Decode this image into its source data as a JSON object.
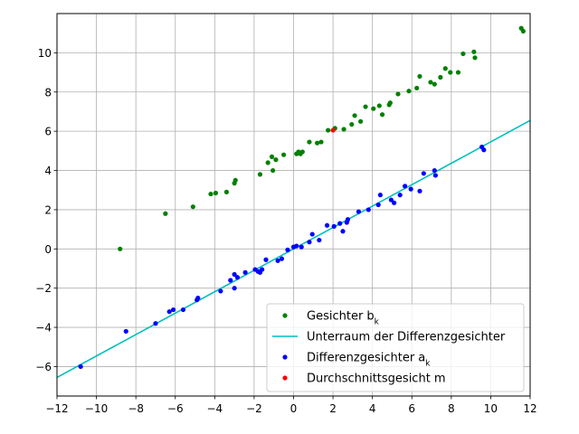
{
  "chart_data": {
    "type": "scatter",
    "title": "",
    "xlabel": "",
    "ylabel": "",
    "xlim": [
      -12,
      12
    ],
    "ylim": [
      -7.5,
      12
    ],
    "xticks": [
      -12,
      -10,
      -8,
      -6,
      -4,
      -2,
      0,
      2,
      4,
      6,
      8,
      10,
      12
    ],
    "yticks": [
      -6,
      -4,
      -2,
      0,
      2,
      4,
      6,
      8,
      10
    ],
    "xtick_labels": [
      "−12",
      "−10",
      "−8",
      "−6",
      "−4",
      "−2",
      "0",
      "2",
      "4",
      "6",
      "8",
      "10",
      "12"
    ],
    "ytick_labels": [
      "−6",
      "−4",
      "−2",
      "0",
      "2",
      "4",
      "6",
      "8",
      "10"
    ],
    "grid": true,
    "legend_position": "bottom-right",
    "legend": [
      {
        "label": "Gesichter b",
        "sub": "k",
        "kind": "point",
        "color": "#008000"
      },
      {
        "label": "Unterraum der Differenzgesichter",
        "sub": "",
        "kind": "line",
        "color": "#00bfbf"
      },
      {
        "label": "Differenzgesichter a",
        "sub": "k",
        "kind": "point",
        "color": "#0000ff"
      },
      {
        "label": "Durchschnittsgesicht m",
        "sub": "",
        "kind": "point",
        "color": "#ff0000"
      }
    ],
    "series": [
      {
        "name": "Gesichter b_k",
        "color": "#008000",
        "points": [
          [
            -8.8,
            0.0
          ],
          [
            -6.5,
            1.8
          ],
          [
            -5.1,
            2.15
          ],
          [
            -4.2,
            2.8
          ],
          [
            -3.95,
            2.85
          ],
          [
            -3.4,
            2.9
          ],
          [
            -3.0,
            3.35
          ],
          [
            -2.95,
            3.5
          ],
          [
            -1.7,
            3.8
          ],
          [
            -1.3,
            4.4
          ],
          [
            -1.1,
            4.7
          ],
          [
            -1.05,
            4.0
          ],
          [
            -0.9,
            4.55
          ],
          [
            -0.5,
            4.8
          ],
          [
            0.15,
            4.85
          ],
          [
            0.25,
            4.95
          ],
          [
            0.35,
            4.85
          ],
          [
            0.45,
            4.95
          ],
          [
            0.8,
            5.45
          ],
          [
            1.2,
            5.4
          ],
          [
            1.4,
            5.45
          ],
          [
            1.75,
            6.05
          ],
          [
            2.1,
            6.15
          ],
          [
            2.55,
            6.1
          ],
          [
            2.95,
            6.35
          ],
          [
            3.1,
            6.8
          ],
          [
            3.4,
            6.5
          ],
          [
            3.65,
            7.25
          ],
          [
            4.05,
            7.15
          ],
          [
            4.35,
            7.3
          ],
          [
            4.5,
            6.85
          ],
          [
            4.85,
            7.35
          ],
          [
            4.9,
            7.45
          ],
          [
            5.3,
            7.9
          ],
          [
            5.85,
            8.05
          ],
          [
            6.25,
            8.2
          ],
          [
            6.4,
            8.8
          ],
          [
            6.95,
            8.5
          ],
          [
            7.15,
            8.4
          ],
          [
            7.45,
            8.75
          ],
          [
            7.7,
            9.2
          ],
          [
            7.95,
            9.0
          ],
          [
            8.35,
            9.0
          ],
          [
            8.6,
            9.95
          ],
          [
            9.15,
            10.05
          ],
          [
            9.2,
            9.75
          ],
          [
            11.55,
            11.25
          ],
          [
            11.65,
            11.1
          ]
        ]
      },
      {
        "name": "Differenzgesichter a_k",
        "color": "#0000ff",
        "points": [
          [
            -10.8,
            -6.0
          ],
          [
            -8.5,
            -4.2
          ],
          [
            -7.0,
            -3.8
          ],
          [
            -6.3,
            -3.2
          ],
          [
            -6.1,
            -3.1
          ],
          [
            -5.6,
            -3.1
          ],
          [
            -4.9,
            -2.6
          ],
          [
            -4.85,
            -2.5
          ],
          [
            -3.7,
            -2.15
          ],
          [
            -3.2,
            -1.6
          ],
          [
            -3.0,
            -2.0
          ],
          [
            -3.0,
            -1.3
          ],
          [
            -2.85,
            -1.45
          ],
          [
            -2.45,
            -1.2
          ],
          [
            -1.95,
            -1.05
          ],
          [
            -1.8,
            -1.15
          ],
          [
            -1.7,
            -1.2
          ],
          [
            -1.6,
            -1.05
          ],
          [
            -1.4,
            -0.55
          ],
          [
            -0.8,
            -0.6
          ],
          [
            -0.6,
            -0.5
          ],
          [
            -0.3,
            -0.05
          ],
          [
            0.0,
            0.1
          ],
          [
            0.15,
            0.15
          ],
          [
            0.4,
            0.1
          ],
          [
            0.8,
            0.35
          ],
          [
            0.95,
            0.75
          ],
          [
            1.3,
            0.45
          ],
          [
            1.7,
            1.2
          ],
          [
            2.05,
            1.15
          ],
          [
            2.35,
            1.3
          ],
          [
            2.5,
            0.9
          ],
          [
            2.7,
            1.35
          ],
          [
            2.75,
            1.5
          ],
          [
            3.3,
            1.9
          ],
          [
            3.8,
            2.0
          ],
          [
            4.3,
            2.25
          ],
          [
            4.4,
            2.75
          ],
          [
            4.95,
            2.5
          ],
          [
            5.1,
            2.35
          ],
          [
            5.4,
            2.75
          ],
          [
            5.65,
            3.2
          ],
          [
            5.95,
            3.05
          ],
          [
            6.4,
            2.95
          ],
          [
            6.6,
            3.85
          ],
          [
            7.15,
            4.0
          ],
          [
            7.2,
            3.75
          ],
          [
            9.55,
            5.2
          ],
          [
            9.65,
            5.05
          ]
        ]
      },
      {
        "name": "Durchschnittsgesicht m",
        "color": "#ff0000",
        "points": [
          [
            2.0,
            6.05
          ]
        ]
      }
    ],
    "line": {
      "name": "Unterraum der Differenzgesichter",
      "color": "#00bfbf",
      "x": [
        -12,
        12
      ],
      "y": [
        -6.55,
        6.55
      ]
    }
  }
}
